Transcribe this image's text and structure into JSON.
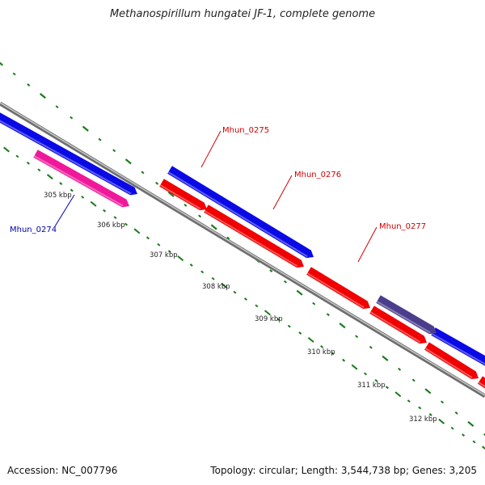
{
  "title": "Methanospirillum hungatei JF-1, complete genome",
  "footer": {
    "accession": "Accession: NC_007796",
    "summary": "Topology: circular; Length: 3,544,738 bp; Genes: 3,205"
  },
  "colors": {
    "backbone": "#8a8a8a",
    "tick": "#1a7a1a",
    "forward_cds": "#0a0ae6",
    "reverse_cds": "#f00000",
    "rna": "#f0189a",
    "other": "#4a3d8c",
    "forward_label": "#0000b0",
    "reverse_label": "#d00000"
  },
  "scale_labels": [
    "305 kbp",
    "306 kbp",
    "307 kbp",
    "308 kbp",
    "309 kbp",
    "310 kbp",
    "311 kbp",
    "312 kbp"
  ],
  "gene_labels": [
    {
      "name": "Mhun_0274",
      "strand": "forward"
    },
    {
      "name": "Mhun_0275",
      "strand": "reverse"
    },
    {
      "name": "Mhun_0276",
      "strand": "reverse"
    },
    {
      "name": "Mhun_0277",
      "strand": "reverse"
    }
  ]
}
